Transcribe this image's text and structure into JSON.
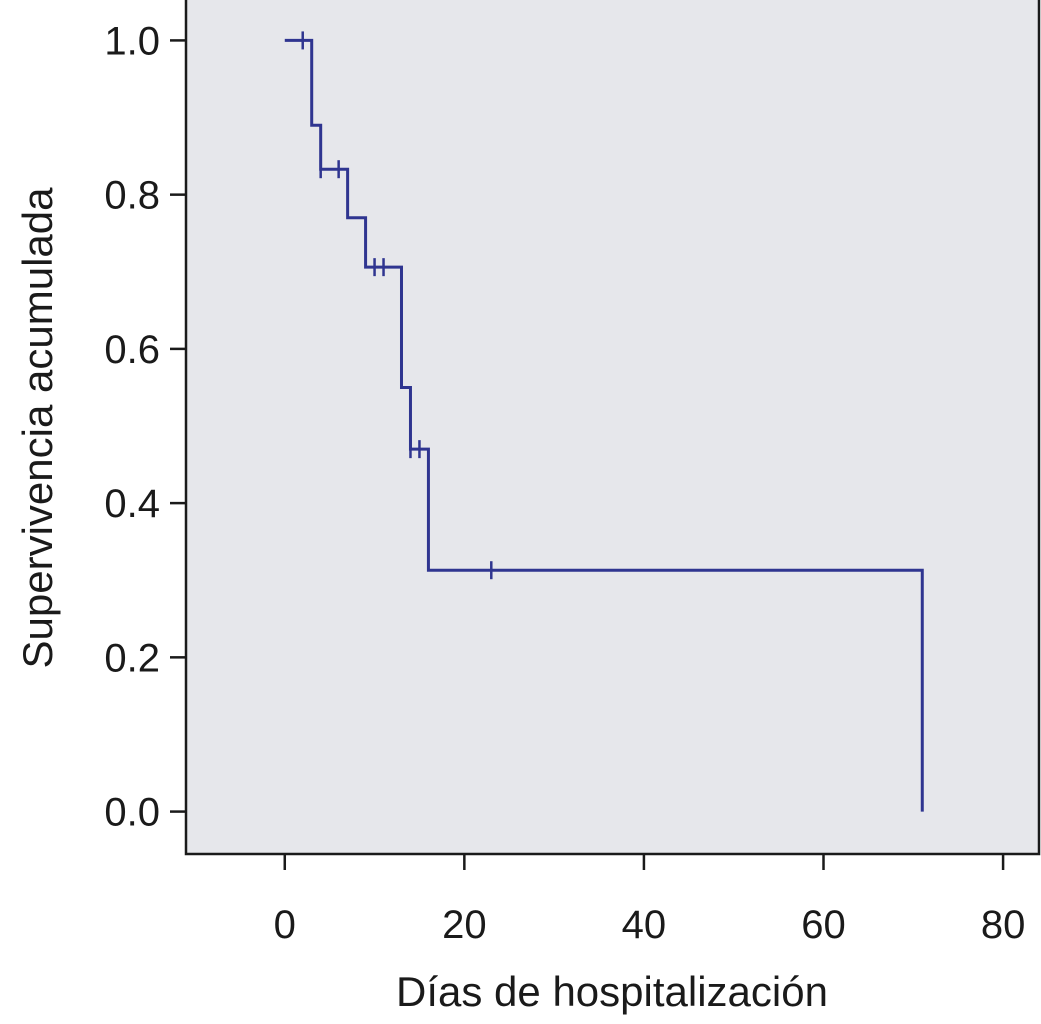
{
  "chart_data": {
    "type": "line",
    "subtype": "kaplan-meier-step",
    "xlabel": "Días de hospitalización",
    "ylabel": "Supervivencia acumulada",
    "xlim": [
      -11,
      84
    ],
    "ylim": [
      -0.055,
      1.055
    ],
    "x_ticks": [
      0,
      20,
      40,
      60,
      80
    ],
    "y_ticks": [
      0.0,
      0.2,
      0.4,
      0.6,
      0.8,
      1.0
    ],
    "x_tick_labels": [
      "0",
      "20",
      "40",
      "60",
      "80"
    ],
    "y_tick_labels": [
      "0.0",
      "0.2",
      "0.4",
      "0.6",
      "0.8",
      "1.0"
    ],
    "grid": false,
    "plot_background": "#e6e7eb",
    "series": [
      {
        "color": "#2f3590",
        "steps": [
          {
            "x": 0,
            "y": 1.0
          },
          {
            "x": 3,
            "y": 0.89
          },
          {
            "x": 4,
            "y": 0.833
          },
          {
            "x": 7,
            "y": 0.77
          },
          {
            "x": 9,
            "y": 0.706
          },
          {
            "x": 13,
            "y": 0.55
          },
          {
            "x": 14,
            "y": 0.47
          },
          {
            "x": 16,
            "y": 0.313
          },
          {
            "x": 71,
            "y": 0.0
          }
        ],
        "censored": [
          {
            "x": 2,
            "y": 1.0
          },
          {
            "x": 4,
            "y": 0.833
          },
          {
            "x": 6,
            "y": 0.833
          },
          {
            "x": 10,
            "y": 0.706
          },
          {
            "x": 11,
            "y": 0.706
          },
          {
            "x": 14,
            "y": 0.47
          },
          {
            "x": 15,
            "y": 0.47
          },
          {
            "x": 23,
            "y": 0.313
          }
        ]
      }
    ]
  }
}
